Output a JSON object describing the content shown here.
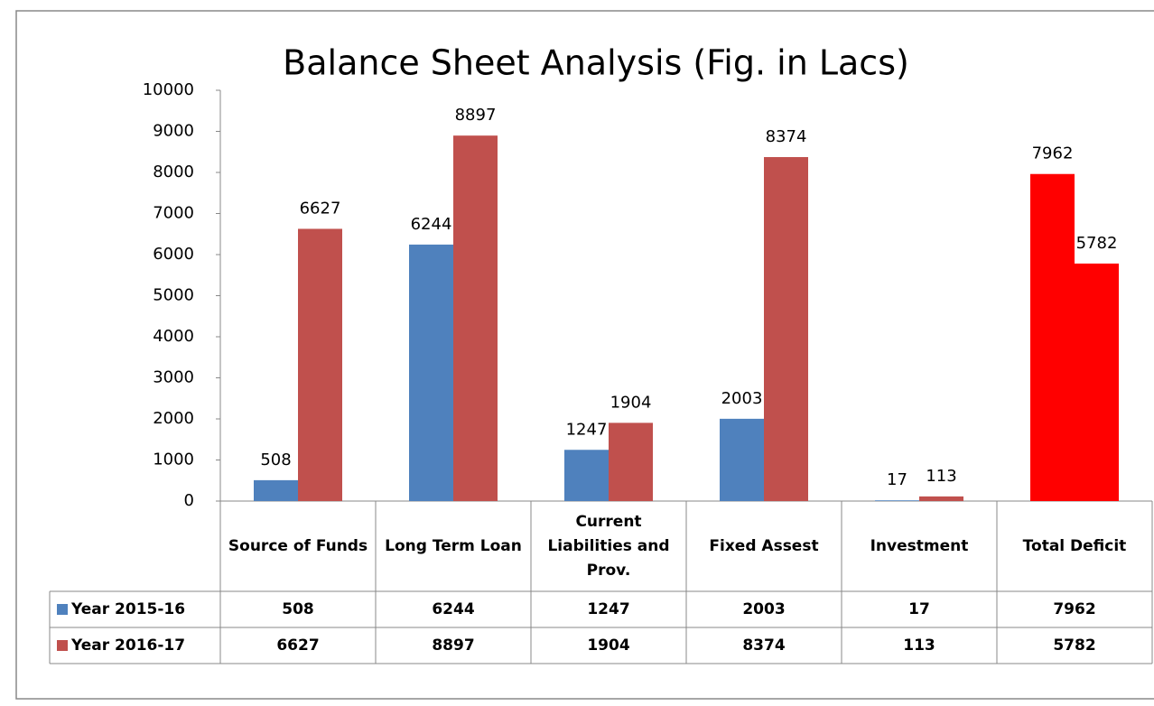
{
  "chart_data": {
    "type": "bar",
    "title": "Balance Sheet Analysis (Fig. in Lacs)",
    "categories": [
      "Source of Funds",
      "Long Term Loan",
      "Current Liabilities and Prov.",
      "Fixed Assest",
      "Investment",
      "Total Deficit"
    ],
    "series": [
      {
        "name": "Year 2015-16",
        "color": "#4f81bd",
        "colors": [
          "#4f81bd",
          "#4f81bd",
          "#4f81bd",
          "#4f81bd",
          "#4f81bd",
          "#ff0000"
        ],
        "values": [
          508,
          6244,
          1247,
          2003,
          17,
          7962
        ]
      },
      {
        "name": "Year 2016-17",
        "color": "#c0504d",
        "colors": [
          "#c0504d",
          "#c0504d",
          "#c0504d",
          "#c0504d",
          "#c0504d",
          "#ff0000"
        ],
        "values": [
          6627,
          8897,
          1904,
          8374,
          113,
          5782
        ]
      }
    ],
    "ylim": [
      0,
      10000
    ],
    "yticks": [
      0,
      1000,
      2000,
      3000,
      4000,
      5000,
      6000,
      7000,
      8000,
      9000,
      10000
    ],
    "data_table": true
  }
}
